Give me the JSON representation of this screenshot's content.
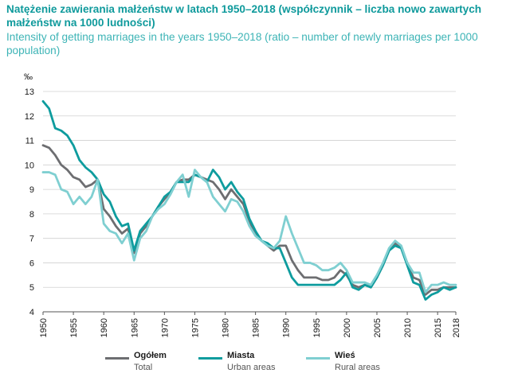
{
  "title_pl": "Natężenie zawierania małżeństw w latach 1950–2018 (współczynnik – liczba nowo zawartych małżeństw na 1000 ludności)",
  "title_en": "Intensity of getting marriages in the years 1950–2018 (ratio – number of newly marriages per 1000 population)",
  "chart_data": {
    "type": "line",
    "unit_label": "‰",
    "ylim": [
      4,
      13
    ],
    "yticks": [
      4,
      5,
      6,
      7,
      8,
      9,
      10,
      11,
      12,
      13
    ],
    "xlim": [
      1950,
      2018
    ],
    "xticks": [
      "1950",
      "1955",
      "1960",
      "1965",
      "1970",
      "1975",
      "1980",
      "1985",
      "1990",
      "1995",
      "2000",
      "2005",
      "2010",
      "2015",
      "2018"
    ],
    "grid": "horizontal",
    "legend_position": "bottom",
    "x": [
      1950,
      1951,
      1952,
      1953,
      1954,
      1955,
      1956,
      1957,
      1958,
      1959,
      1960,
      1961,
      1962,
      1963,
      1964,
      1965,
      1966,
      1967,
      1968,
      1969,
      1970,
      1971,
      1972,
      1973,
      1974,
      1975,
      1976,
      1977,
      1978,
      1979,
      1980,
      1981,
      1982,
      1983,
      1984,
      1985,
      1986,
      1987,
      1988,
      1989,
      1990,
      1991,
      1992,
      1993,
      1994,
      1995,
      1996,
      1997,
      1998,
      1999,
      2000,
      2001,
      2002,
      2003,
      2004,
      2005,
      2006,
      2007,
      2008,
      2009,
      2010,
      2011,
      2012,
      2013,
      2014,
      2015,
      2016,
      2017,
      2018
    ],
    "series": [
      {
        "name": "Ogółem",
        "name_en": "Total",
        "color": "#6d6e71",
        "values": [
          10.8,
          10.7,
          10.4,
          10.0,
          9.8,
          9.5,
          9.4,
          9.1,
          9.2,
          9.4,
          8.2,
          7.9,
          7.5,
          7.2,
          7.4,
          6.4,
          7.2,
          7.5,
          7.9,
          8.3,
          8.6,
          8.9,
          9.3,
          9.4,
          9.4,
          9.6,
          9.5,
          9.4,
          9.3,
          9.0,
          8.6,
          9.0,
          8.7,
          8.4,
          7.7,
          7.2,
          6.9,
          6.7,
          6.5,
          6.7,
          6.7,
          6.1,
          5.7,
          5.4,
          5.4,
          5.4,
          5.3,
          5.3,
          5.4,
          5.7,
          5.5,
          5.1,
          5.0,
          5.1,
          5.0,
          5.4,
          5.9,
          6.5,
          6.8,
          6.6,
          6.0,
          5.4,
          5.3,
          4.7,
          4.9,
          4.9,
          5.0,
          5.0,
          5.0
        ]
      },
      {
        "name": "Miasta",
        "name_en": "Urban areas",
        "color": "#0e9c9e",
        "values": [
          12.6,
          12.3,
          11.5,
          11.4,
          11.2,
          10.8,
          10.2,
          9.9,
          9.7,
          9.4,
          8.8,
          8.5,
          7.9,
          7.5,
          7.6,
          6.5,
          7.3,
          7.6,
          7.9,
          8.3,
          8.7,
          8.9,
          9.3,
          9.3,
          9.3,
          9.6,
          9.5,
          9.3,
          9.8,
          9.5,
          9.0,
          9.3,
          8.9,
          8.6,
          7.8,
          7.3,
          6.9,
          6.8,
          6.6,
          6.6,
          6.0,
          5.4,
          5.1,
          5.1,
          5.1,
          5.1,
          5.1,
          5.1,
          5.1,
          5.3,
          5.6,
          5.0,
          4.9,
          5.1,
          5.0,
          5.4,
          5.9,
          6.5,
          6.7,
          6.6,
          5.9,
          5.2,
          5.1,
          4.5,
          4.7,
          4.8,
          5.0,
          4.9,
          5.0
        ]
      },
      {
        "name": "Wieś",
        "name_en": "Rural areas",
        "color": "#7fcfd1",
        "values": [
          9.7,
          9.7,
          9.6,
          9.0,
          8.9,
          8.4,
          8.7,
          8.4,
          8.7,
          9.4,
          7.6,
          7.3,
          7.2,
          6.8,
          7.2,
          6.1,
          7.0,
          7.3,
          7.9,
          8.2,
          8.4,
          8.8,
          9.3,
          9.6,
          8.7,
          9.8,
          9.5,
          9.3,
          8.7,
          8.4,
          8.1,
          8.6,
          8.5,
          8.1,
          7.5,
          7.1,
          6.9,
          6.7,
          6.6,
          6.9,
          7.9,
          7.2,
          6.6,
          6.0,
          6.0,
          5.9,
          5.7,
          5.7,
          5.8,
          6.0,
          5.7,
          5.2,
          5.2,
          5.2,
          5.1,
          5.5,
          6.0,
          6.6,
          6.9,
          6.7,
          6.0,
          5.6,
          5.6,
          4.8,
          5.1,
          5.1,
          5.2,
          5.1,
          5.1
        ]
      }
    ]
  }
}
